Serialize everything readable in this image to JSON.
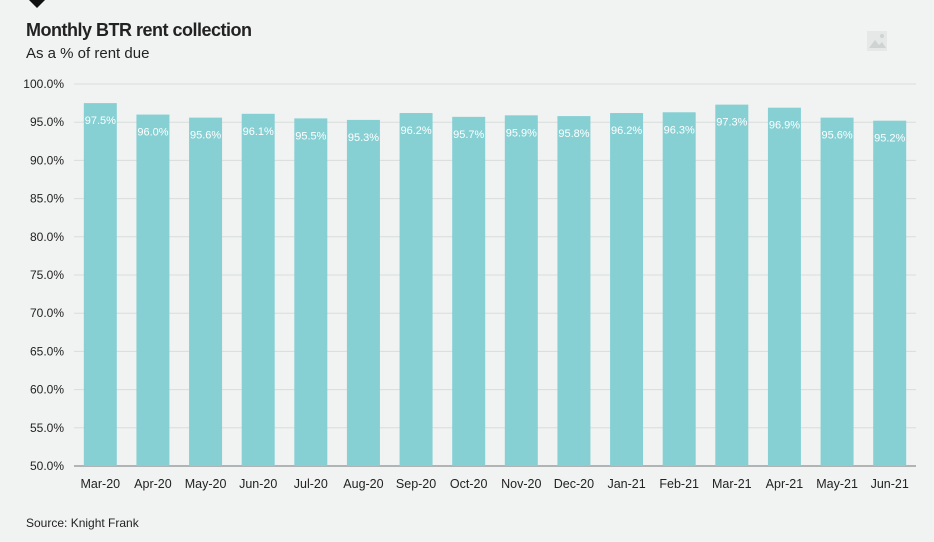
{
  "header": {
    "title": "Monthly BTR rent collection",
    "subtitle": "As a % of rent due"
  },
  "footer": {
    "source": "Source: Knight Frank"
  },
  "colors": {
    "bar": "#86d0d4",
    "label": "#ffffff",
    "grid": "#d8dcdb",
    "background": "#f1f3f2"
  },
  "chart_data": {
    "type": "bar",
    "title": "Monthly BTR rent collection",
    "subtitle": "As a % of rent due",
    "categories": [
      "Mar-20",
      "Apr-20",
      "May-20",
      "Jun-20",
      "Jul-20",
      "Aug-20",
      "Sep-20",
      "Oct-20",
      "Nov-20",
      "Dec-20",
      "Jan-21",
      "Feb-21",
      "Mar-21",
      "Apr-21",
      "May-21",
      "Jun-21"
    ],
    "values": [
      97.5,
      96.0,
      95.6,
      96.1,
      95.5,
      95.3,
      96.2,
      95.7,
      95.9,
      95.8,
      96.2,
      96.3,
      97.3,
      96.9,
      95.6,
      95.2
    ],
    "data_labels": [
      "97.5%",
      "96.0%",
      "95.6%",
      "96.1%",
      "95.5%",
      "95.3%",
      "96.2%",
      "95.7%",
      "95.9%",
      "95.8%",
      "96.2%",
      "96.3%",
      "97.3%",
      "96.9%",
      "95.6%",
      "95.2%"
    ],
    "yticks": [
      "50.0%",
      "55.0%",
      "60.0%",
      "65.0%",
      "70.0%",
      "75.0%",
      "80.0%",
      "85.0%",
      "90.0%",
      "95.0%",
      "100.0%"
    ],
    "ylim": [
      50,
      100
    ],
    "xlabel": "",
    "ylabel": "",
    "grid": true,
    "legend": "none"
  }
}
